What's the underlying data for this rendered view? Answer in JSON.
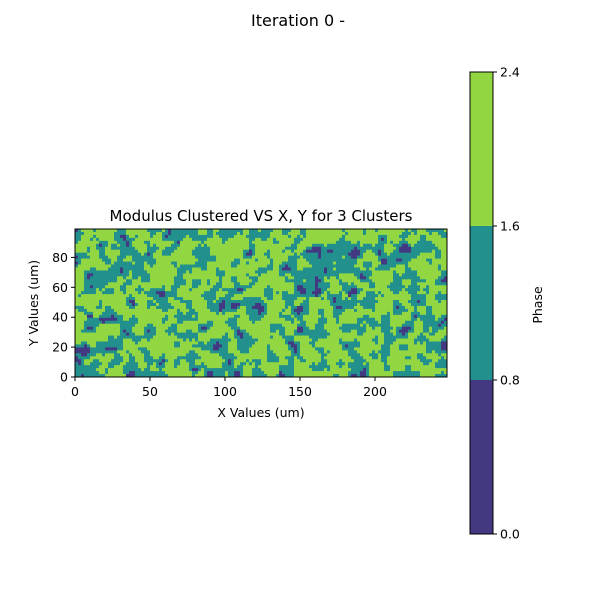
{
  "figure": {
    "suptitle": "Iteration 0 -"
  },
  "chart_data": {
    "type": "heatmap",
    "title": "Modulus Clustered VS X, Y for 3 Clusters",
    "xlabel": "X Values (um)",
    "ylabel": "Y Values (um)",
    "xlim": [
      0,
      248
    ],
    "ylim": [
      0,
      99
    ],
    "x_ticks": [
      0,
      50,
      100,
      150,
      200
    ],
    "y_ticks": [
      0,
      20,
      40,
      60,
      80
    ],
    "grid": false,
    "phase_levels": [
      0,
      1,
      2
    ],
    "phase_fraction": {
      "0": 0.04,
      "1": 0.42,
      "2": 0.54
    },
    "colorbar": {
      "label": "Phase",
      "ticks": [
        "0.0",
        "0.8",
        "1.6",
        "2.4"
      ],
      "bins": [
        {
          "from": 0.0,
          "to": 0.8,
          "color": "#433882"
        },
        {
          "from": 0.8,
          "to": 1.6,
          "color": "#22908c"
        },
        {
          "from": 1.6,
          "to": 2.4,
          "color": "#92d742"
        }
      ]
    }
  }
}
